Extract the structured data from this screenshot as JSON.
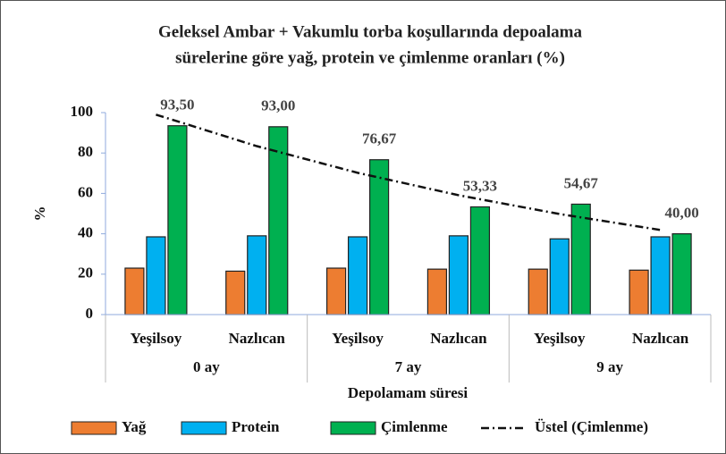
{
  "chart_data": {
    "type": "bar",
    "title": [
      "Geleksel Ambar + Vakumlu torba koşullarında depoalama",
      "sürelerine göre yağ, protein ve çimlenme oranları (%)"
    ],
    "categories": [
      "Yeşilsoy",
      "Nazlıcan",
      "Yeşilsoy",
      "Nazlıcan",
      "Yeşilsoy",
      "Nazlıcan"
    ],
    "groups": [
      "0 ay",
      "7 ay",
      "9 ay"
    ],
    "xlabel": "Depolamam süresi",
    "ylabel": "%",
    "ylim": [
      0,
      100
    ],
    "yticks": [
      0,
      20,
      40,
      60,
      80,
      100
    ],
    "series": [
      {
        "name": "Yağ",
        "color": "#ed7d31",
        "values": [
          23,
          21.5,
          23,
          22.5,
          22.5,
          22
        ]
      },
      {
        "name": "Protein",
        "color": "#00b0f0",
        "values": [
          38.5,
          39,
          38.5,
          39,
          37.5,
          38.5
        ]
      },
      {
        "name": "Çimlenme",
        "color": "#00b050",
        "values": [
          93.5,
          93,
          76.67,
          53.33,
          54.67,
          40
        ],
        "value_labels": [
          "93,50",
          "93,00",
          "76,67",
          "53,33",
          "54,67",
          "40,00"
        ]
      },
      {
        "name": "Üstel (Çimlenme)",
        "type": "line",
        "color": "#111111",
        "dash": "dashdot",
        "values": [
          99,
          83.4,
          70.2,
          59.1,
          49.8,
          41.9
        ]
      }
    ]
  }
}
